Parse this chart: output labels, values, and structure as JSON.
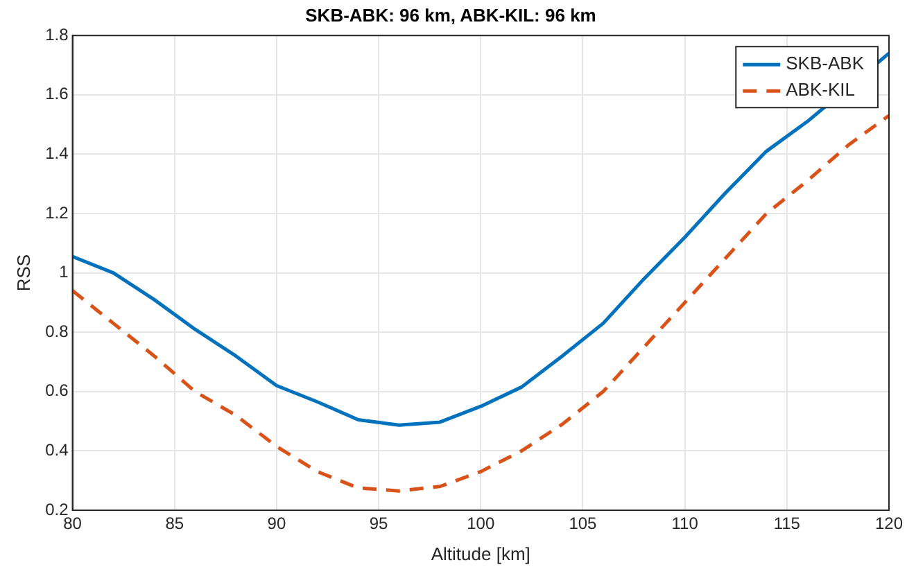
{
  "chart_data": {
    "type": "line",
    "title": "SKB-ABK: 96 km, ABK-KIL: 96 km",
    "xlabel": "Altitude [km]",
    "ylabel": "RSS",
    "x": [
      80,
      82,
      84,
      86,
      88,
      90,
      92,
      94,
      96,
      98,
      100,
      102,
      104,
      106,
      108,
      110,
      112,
      114,
      116,
      118,
      120
    ],
    "series": [
      {
        "name": "SKB-ABK",
        "color": "#0072bd",
        "line_style": "solid",
        "values": [
          1.055,
          1.0,
          0.91,
          0.81,
          0.72,
          0.62,
          0.565,
          0.505,
          0.487,
          0.497,
          0.55,
          0.615,
          0.72,
          0.83,
          0.98,
          1.12,
          1.27,
          1.41,
          1.51,
          null,
          1.74
        ]
      },
      {
        "name": "ABK-KIL",
        "color": "#d95319",
        "line_style": "dashed",
        "values": [
          0.94,
          0.83,
          0.72,
          0.6,
          0.52,
          0.415,
          0.33,
          0.275,
          0.265,
          0.28,
          0.33,
          0.4,
          0.49,
          0.6,
          0.75,
          0.9,
          1.05,
          1.2,
          1.31,
          1.43,
          1.53
        ]
      }
    ],
    "xlim": [
      80,
      120
    ],
    "xticks": [
      80,
      85,
      90,
      95,
      100,
      105,
      110,
      115,
      120
    ],
    "ylim": [
      0.2,
      1.8
    ],
    "yticks": [
      0.2,
      0.4,
      0.6,
      0.8,
      1,
      1.2,
      1.4,
      1.6,
      1.8
    ],
    "grid": true,
    "legend": "top right",
    "marker": "none"
  }
}
